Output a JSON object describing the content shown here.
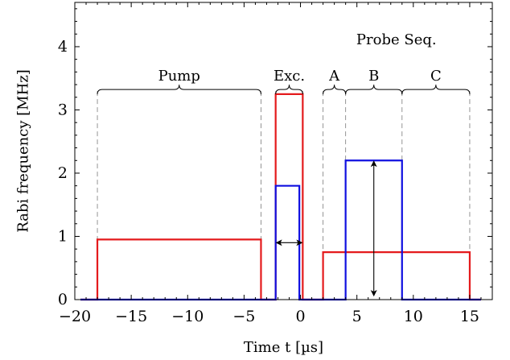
{
  "chart_data": {
    "type": "line",
    "title": "",
    "xlabel": "Time t [µs]",
    "ylabel": "Rabi frequency [MHz]",
    "xlim": [
      -20,
      17
    ],
    "ylim": [
      0,
      4.7
    ],
    "xticks": [
      -20,
      -15,
      -10,
      -5,
      0,
      5,
      10,
      15
    ],
    "yticks": [
      0,
      1,
      2,
      3,
      4
    ],
    "xtick_labels": [
      "−20",
      "−15",
      "−10",
      "−5",
      "0",
      "5",
      "10",
      "15"
    ],
    "ytick_labels": [
      "0",
      "1",
      "2",
      "3",
      "4"
    ],
    "grid": false,
    "series": [
      {
        "color": "#e41a1c",
        "x": [
          -19.5,
          -18,
          -18,
          -3.5,
          -3.5,
          -2.5,
          -2.2,
          -2.2,
          0.2,
          0.2,
          1,
          2,
          2,
          15,
          15,
          16
        ],
        "y": [
          0,
          0,
          0.95,
          0.95,
          0,
          0,
          0,
          3.25,
          3.25,
          0,
          0,
          0,
          0.75,
          0.75,
          0,
          0
        ]
      },
      {
        "color": "#1010e0",
        "x": [
          -19.5,
          -2.2,
          -2.2,
          -0.1,
          -0.1,
          4,
          4,
          9,
          9,
          16
        ],
        "y": [
          0,
          0,
          1.8,
          1.8,
          0,
          0,
          2.2,
          2.2,
          0,
          0
        ]
      }
    ],
    "dashed_markers": [
      -18,
      -3.5,
      -2.2,
      0.2,
      2,
      4,
      9,
      15
    ],
    "braces": [
      {
        "label": "Pump",
        "x0": -18,
        "x1": -3.5,
        "y": 3.4
      },
      {
        "label": "Exc.",
        "x0": -2.2,
        "x1": 0.2,
        "y": 3.4
      },
      {
        "label": "A",
        "x0": 2,
        "x1": 4,
        "y": 3.4
      },
      {
        "label": "B",
        "x0": 4,
        "x1": 9,
        "y": 3.4
      },
      {
        "label": "C",
        "x0": 9,
        "x1": 15,
        "y": 3.4
      }
    ],
    "group_label": {
      "text": "Probe Seq.",
      "x": 8.5,
      "y": 4.1
    },
    "arrows": [
      {
        "orientation": "horizontal",
        "x0": -2.2,
        "x1": 0.2,
        "y": 0.9
      },
      {
        "orientation": "vertical",
        "x": 6.5,
        "y0": 0.05,
        "y1": 2.2
      }
    ]
  }
}
